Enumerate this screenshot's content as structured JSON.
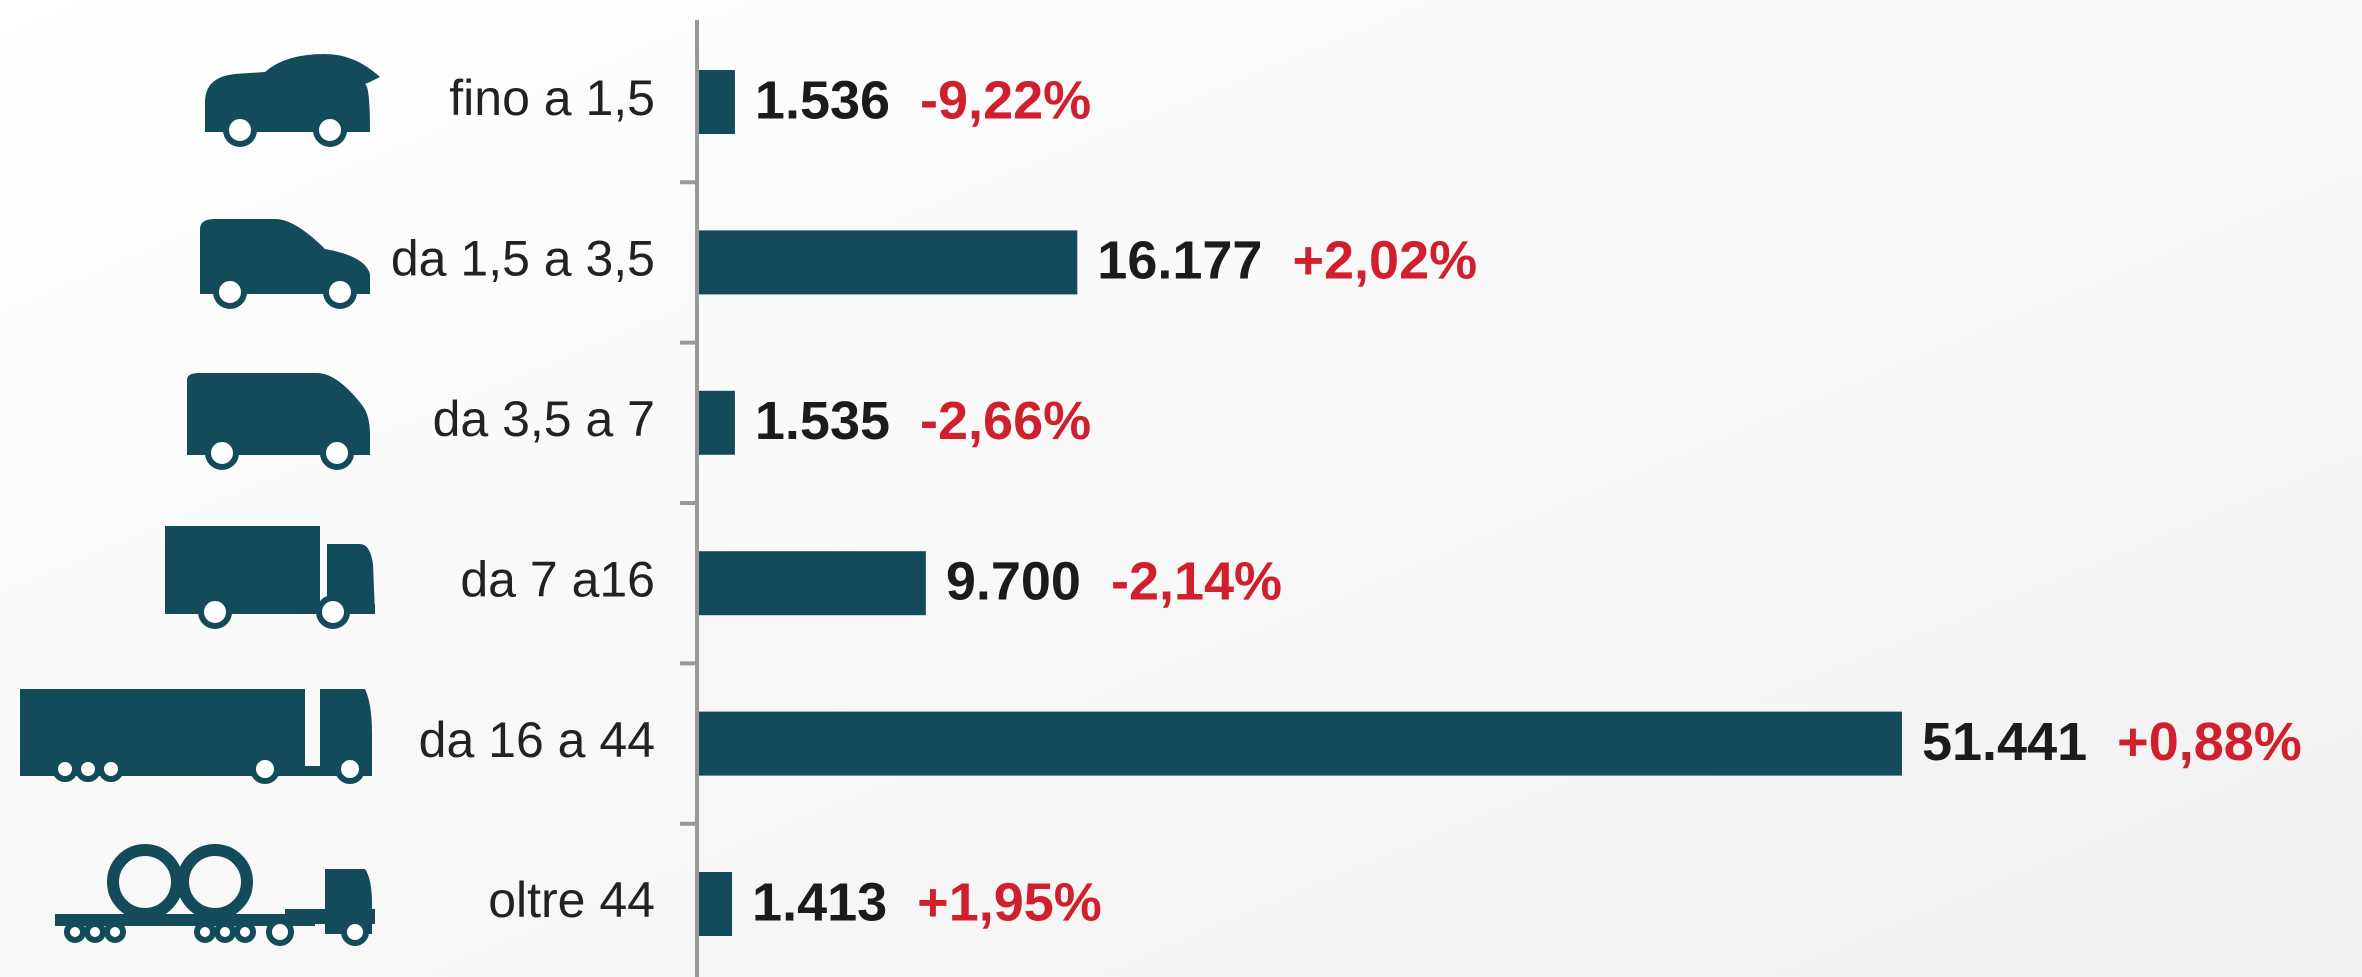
{
  "chart_data": {
    "type": "hbar",
    "categories": [
      "fino a 1,5",
      "da 1,5 a 3,5",
      "da 3,5 a 7",
      "da 7 a16",
      "da 16 a 44",
      "oltre 44"
    ],
    "values": [
      1536,
      16177,
      1535,
      9700,
      51441,
      1413
    ],
    "value_labels": [
      "1.536",
      "16.177",
      "1.535",
      "9.700",
      "51.441",
      "1.413"
    ],
    "change_labels": [
      "-9,22%",
      "+2,02%",
      "-2,66%",
      "-2,14%",
      "+0,88%",
      "+1,95%"
    ],
    "color": "#134b5a",
    "xlim": [
      0,
      70000
    ]
  }
}
